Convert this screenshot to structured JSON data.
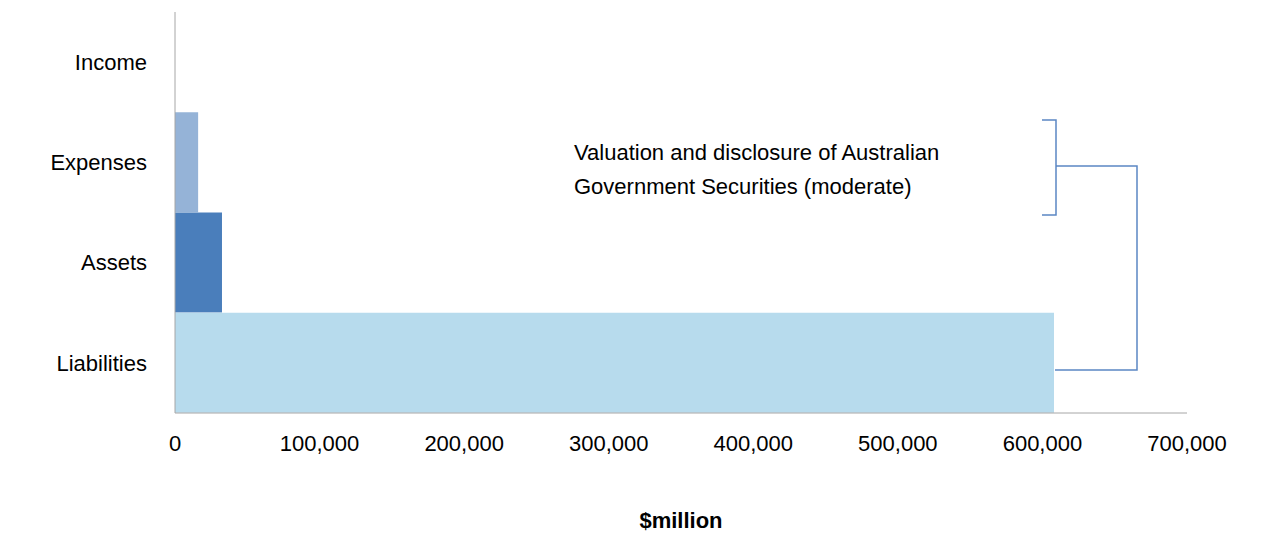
{
  "chart_data": {
    "type": "bar",
    "orientation": "horizontal",
    "categories": [
      "Income",
      "Expenses",
      "Assets",
      "Liabilities"
    ],
    "values": [
      0,
      16000,
      32500,
      608000
    ],
    "colors": [
      "#95b3d7",
      "#95b3d7",
      "#4a7ebb",
      "#b7dbed"
    ],
    "xlim": [
      0,
      700000
    ],
    "xticks": [
      0,
      {
        "value": 100000,
        "label": "100,000"
      },
      {
        "value": 200000,
        "label": "200,000"
      },
      {
        "value": 300000,
        "label": "300,000"
      },
      {
        "value": 400000,
        "label": "400,000"
      },
      {
        "value": 500000,
        "label": "500,000"
      },
      {
        "value": 600000,
        "label": "600,000"
      },
      {
        "value": 700000,
        "label": "700,000"
      }
    ],
    "x_label": "$million",
    "annotation": "Valuation and disclosure of Australian Government Securities (moderate)",
    "grid": false
  }
}
